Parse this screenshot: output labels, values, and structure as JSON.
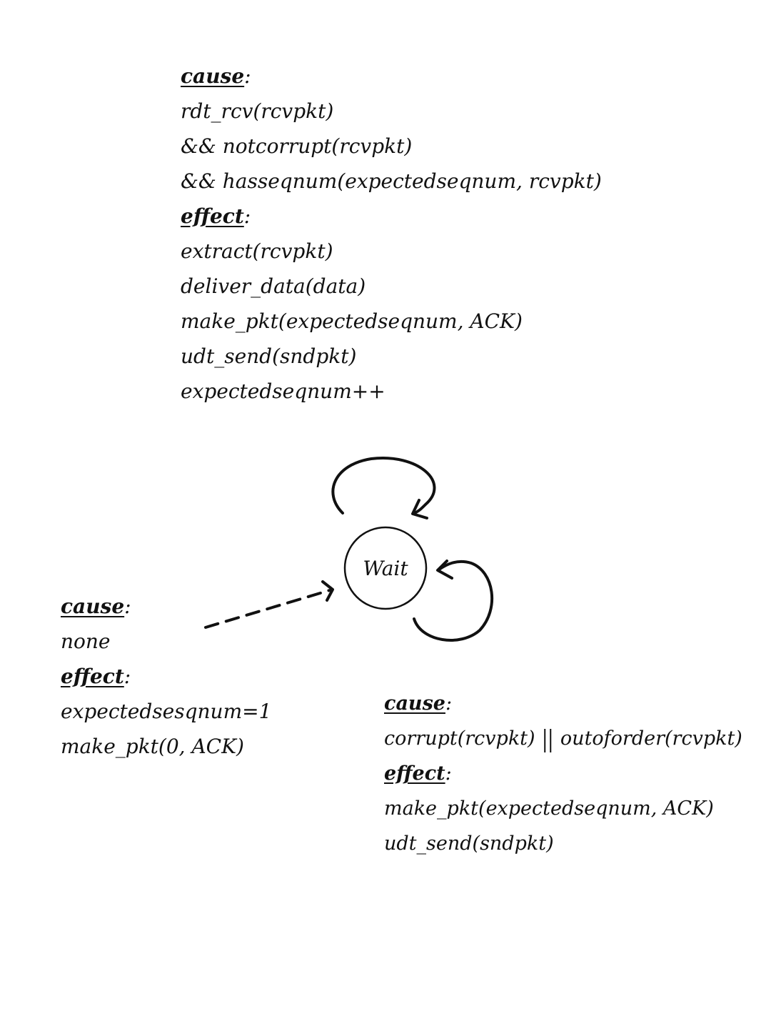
{
  "state": {
    "name": "Wait"
  },
  "transition_top": {
    "cause_label": "cause",
    "cause_lines": [
      "rdt_rcv(rcvpkt)",
      "&& notcorrupt(rcvpkt)",
      "&& hasseqnum(expectedseqnum, rcvpkt)"
    ],
    "effect_label": "effect",
    "effect_lines": [
      "extract(rcvpkt)",
      "deliver_data(data)",
      "make_pkt(expectedseqnum, ACK)",
      "udt_send(sndpkt)",
      "expectedseqnum++"
    ]
  },
  "transition_initial": {
    "cause_label": "cause",
    "cause_lines": [
      "none"
    ],
    "effect_label": "effect",
    "effect_lines": [
      "expectedsesqnum=1",
      "make_pkt(0, ACK)"
    ]
  },
  "transition_bottom": {
    "cause_label": "cause",
    "cause_lines": [
      "corrupt(rcvpkt) || outoforder(rcvpkt)"
    ],
    "effect_label": "effect",
    "effect_lines": [
      "make_pkt(expectedseqnum, ACK)",
      "udt_send(sndpkt)"
    ]
  }
}
